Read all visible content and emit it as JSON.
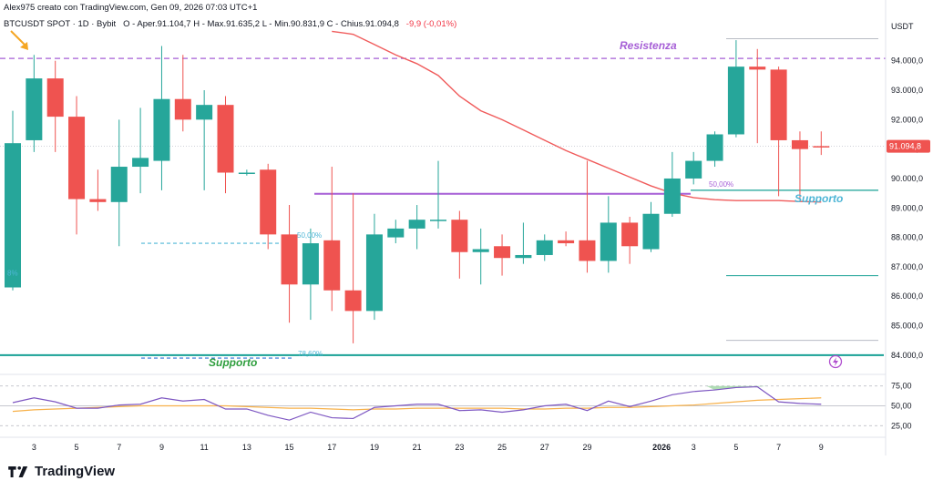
{
  "header": {
    "created_by": "Alex975 creato con TradingView.com, Gen 09, 2026 07:03 UTC+1",
    "symbol": "BTCUSDT SPOT · 1D · Bybit",
    "ohlc": "O - Aper.91.104,7  H - Max.91.635,2  L - Min.90.831,9  C - Chius.91.094,8",
    "change": "-9,9 (-0,01%)"
  },
  "currency": "USDT",
  "brand": "TradingView",
  "annotations": {
    "resistance": "Resistenza",
    "support_right": "Supporto",
    "support_left": "Supporto",
    "fib_50_right": "50,00%",
    "fib_50_left": "50,00%",
    "fib_786": "78,60%",
    "fib_left_partial": "8%"
  },
  "colors": {
    "up": "#26a69a",
    "down": "#ef5350",
    "ma": "#f05b5b",
    "resistance": "#a65fd6",
    "support_line": "#17a095",
    "fib": "#4fb6d6",
    "rsi": "#7e57c2",
    "rsi_ma": "#f7b14a"
  },
  "chart_data": {
    "type": "candlestick",
    "interval": "1D",
    "ylim": [
      83900,
      95400
    ],
    "x_ticks": [
      "3",
      "5",
      "7",
      "9",
      "11",
      "13",
      "15",
      "17",
      "19",
      "21",
      "23",
      "25",
      "27",
      "29",
      "2026",
      "3",
      "5",
      "7",
      "9"
    ],
    "y_ticks": [
      "94.000,0",
      "93.000,0",
      "92.000,0",
      "91.000,0",
      "90.000,0",
      "89.000,0",
      "88.000,0",
      "87.000,0",
      "86.000,0",
      "85.000,0",
      "84.000,0"
    ],
    "last_price_label": "91.094,8",
    "candles": [
      {
        "o": 86300,
        "h": 92300,
        "l": 86200,
        "c": 91200
      },
      {
        "o": 91300,
        "h": 94200,
        "l": 90900,
        "c": 93400
      },
      {
        "o": 93400,
        "h": 94000,
        "l": 90900,
        "c": 92100
      },
      {
        "o": 92100,
        "h": 92800,
        "l": 88100,
        "c": 89300
      },
      {
        "o": 89300,
        "h": 90300,
        "l": 88900,
        "c": 89200
      },
      {
        "o": 89200,
        "h": 92000,
        "l": 87700,
        "c": 90400
      },
      {
        "o": 90400,
        "h": 92400,
        "l": 89500,
        "c": 90700
      },
      {
        "o": 90600,
        "h": 94500,
        "l": 89600,
        "c": 92700
      },
      {
        "o": 92700,
        "h": 94200,
        "l": 91600,
        "c": 92000
      },
      {
        "o": 92000,
        "h": 93000,
        "l": 89600,
        "c": 92500
      },
      {
        "o": 92500,
        "h": 92800,
        "l": 89500,
        "c": 90200
      },
      {
        "o": 90200,
        "h": 90300,
        "l": 90100,
        "c": 90200
      },
      {
        "o": 90300,
        "h": 90500,
        "l": 87600,
        "c": 88100
      },
      {
        "o": 88100,
        "h": 89100,
        "l": 85100,
        "c": 86400
      },
      {
        "o": 86400,
        "h": 88300,
        "l": 85200,
        "c": 87800
      },
      {
        "o": 87900,
        "h": 90400,
        "l": 85500,
        "c": 86200
      },
      {
        "o": 86200,
        "h": 89500,
        "l": 84400,
        "c": 85500
      },
      {
        "o": 85500,
        "h": 88800,
        "l": 85200,
        "c": 88100
      },
      {
        "o": 88000,
        "h": 88600,
        "l": 87800,
        "c": 88300
      },
      {
        "o": 88300,
        "h": 89100,
        "l": 87600,
        "c": 88600
      },
      {
        "o": 88600,
        "h": 90600,
        "l": 88300,
        "c": 88600
      },
      {
        "o": 88600,
        "h": 88900,
        "l": 86600,
        "c": 87500
      },
      {
        "o": 87500,
        "h": 88300,
        "l": 86400,
        "c": 87600
      },
      {
        "o": 87700,
        "h": 88100,
        "l": 86700,
        "c": 87300
      },
      {
        "o": 87300,
        "h": 88500,
        "l": 87100,
        "c": 87400
      },
      {
        "o": 87400,
        "h": 88100,
        "l": 87200,
        "c": 87900
      },
      {
        "o": 87900,
        "h": 88200,
        "l": 87700,
        "c": 87800
      },
      {
        "o": 87900,
        "h": 90600,
        "l": 86800,
        "c": 87200
      },
      {
        "o": 87200,
        "h": 89400,
        "l": 86800,
        "c": 88500
      },
      {
        "o": 88500,
        "h": 88700,
        "l": 87100,
        "c": 87700
      },
      {
        "o": 87600,
        "h": 89200,
        "l": 87500,
        "c": 88800
      },
      {
        "o": 88800,
        "h": 90900,
        "l": 88700,
        "c": 90000
      },
      {
        "o": 90000,
        "h": 90900,
        "l": 89800,
        "c": 90600
      },
      {
        "o": 90600,
        "h": 91600,
        "l": 90400,
        "c": 91500
      },
      {
        "o": 91500,
        "h": 94700,
        "l": 91400,
        "c": 93800
      },
      {
        "o": 93800,
        "h": 94400,
        "l": 91200,
        "c": 93700
      },
      {
        "o": 93700,
        "h": 93800,
        "l": 89400,
        "c": 91300
      },
      {
        "o": 91300,
        "h": 91600,
        "l": 89300,
        "c": 91000
      },
      {
        "o": 91100,
        "h": 91600,
        "l": 90800,
        "c": 91095
      }
    ],
    "moving_average": [
      {
        "i": 15,
        "v": 95000
      },
      {
        "i": 16,
        "v": 94900
      },
      {
        "i": 17,
        "v": 94550
      },
      {
        "i": 18,
        "v": 94200
      },
      {
        "i": 19,
        "v": 93900
      },
      {
        "i": 20,
        "v": 93500
      },
      {
        "i": 21,
        "v": 92800
      },
      {
        "i": 22,
        "v": 92300
      },
      {
        "i": 23,
        "v": 92000
      },
      {
        "i": 24,
        "v": 91650
      },
      {
        "i": 25,
        "v": 91300
      },
      {
        "i": 26,
        "v": 90950
      },
      {
        "i": 27,
        "v": 90650
      },
      {
        "i": 28,
        "v": 90350
      },
      {
        "i": 29,
        "v": 90050
      },
      {
        "i": 30,
        "v": 89750
      },
      {
        "i": 31,
        "v": 89500
      },
      {
        "i": 32,
        "v": 89350
      },
      {
        "i": 33,
        "v": 89280
      },
      {
        "i": 34,
        "v": 89250
      },
      {
        "i": 35,
        "v": 89250
      },
      {
        "i": 36,
        "v": 89250
      },
      {
        "i": 37,
        "v": 89220
      },
      {
        "i": 38,
        "v": 89200
      }
    ],
    "levels": {
      "resistance": 94080,
      "support_horizontal": 89480,
      "support_right_line": 89600,
      "fib_50_left": 87800,
      "support_bottom": 84000,
      "fib_786": 83900,
      "teal_short": 86700,
      "gray_top": 94750,
      "gray_low": 84500
    },
    "rsi": {
      "ticks": [
        "75,00",
        "50,00",
        "25,00"
      ],
      "values": [
        54,
        60,
        55,
        47,
        47,
        51,
        52,
        60,
        56,
        58,
        46,
        46,
        38,
        32,
        42,
        35,
        34,
        48,
        50,
        52,
        52,
        44,
        45,
        42,
        45,
        50,
        52,
        44,
        56,
        49,
        56,
        64,
        68,
        70,
        73,
        74,
        55,
        53,
        52
      ],
      "ma": [
        43,
        45,
        46,
        47,
        48,
        49,
        50,
        50,
        50,
        50,
        50,
        49,
        48,
        47,
        47,
        46,
        45,
        46,
        46,
        47,
        47,
        47,
        47,
        47,
        46,
        46,
        47,
        47,
        48,
        48,
        49,
        50,
        51,
        53,
        55,
        57,
        58,
        59,
        60
      ]
    }
  }
}
